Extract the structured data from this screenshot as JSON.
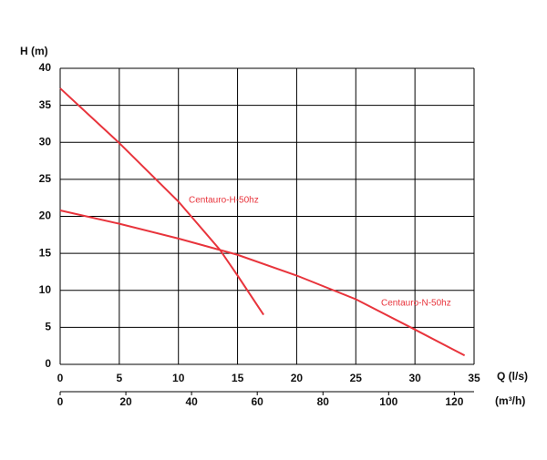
{
  "chart_data": {
    "type": "line",
    "y_label": "H (m)",
    "x_label": "Q (l/s)",
    "x2_label": "(m³/h)",
    "xlim": [
      0,
      35
    ],
    "xticks": [
      0,
      5,
      10,
      15,
      20,
      25,
      30,
      35
    ],
    "ylim": [
      0,
      40
    ],
    "yticks": [
      0,
      5,
      10,
      15,
      20,
      25,
      30,
      35,
      40
    ],
    "x2lim": [
      0,
      126
    ],
    "x2ticks": [
      0,
      20,
      40,
      60,
      80,
      100,
      120
    ],
    "grid": true,
    "series": [
      {
        "name": "Centauro-H-50hz",
        "color": "#e8343c",
        "x": [
          0,
          5,
          10,
          13.5,
          15,
          17.2
        ],
        "values": [
          37.3,
          29.9,
          22,
          15.5,
          12,
          6.7
        ]
      },
      {
        "name": "Centauro-N-50hz",
        "color": "#e8343c",
        "x": [
          0,
          5,
          10,
          15,
          20,
          25,
          30,
          34.2
        ],
        "values": [
          20.8,
          19,
          17,
          14.8,
          12,
          8.8,
          4.7,
          1.2
        ]
      }
    ]
  }
}
